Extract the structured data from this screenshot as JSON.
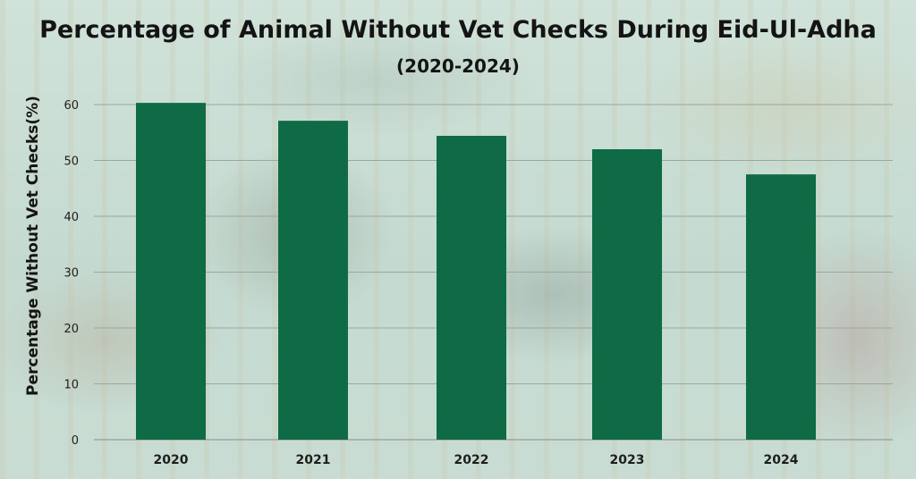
{
  "chart_data": {
    "type": "bar",
    "title": "Percentage of Animal Without Vet Checks During Eid-Ul-Adha",
    "subtitle": "(2020-2024)",
    "ylabel": "Percentage Without Vet Checks(%)",
    "xlabel": "",
    "categories": [
      "2020",
      "2021",
      "2022",
      "2023",
      "2024"
    ],
    "values": [
      60.3,
      57.1,
      54.4,
      52.0,
      47.5
    ],
    "ylim": [
      0,
      62
    ],
    "yticks": [
      0,
      10,
      20,
      30,
      40,
      50,
      60
    ],
    "grid": true,
    "bar_color": "#0f6b45"
  }
}
